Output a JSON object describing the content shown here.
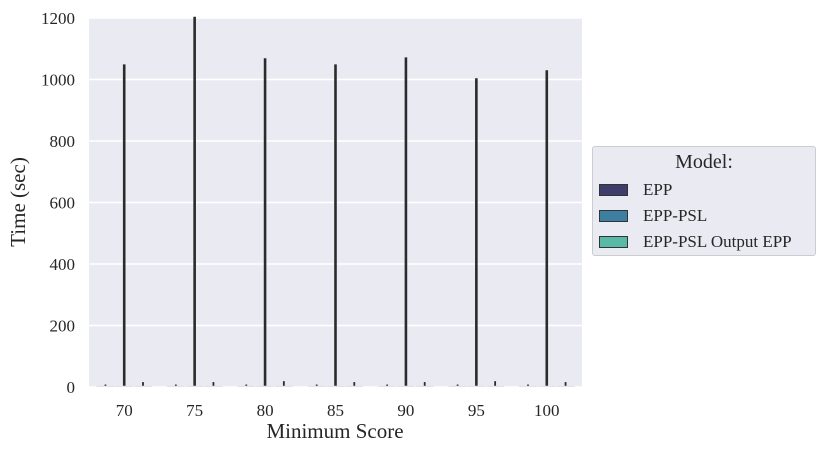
{
  "chart_data": {
    "type": "bar",
    "xlabel": "Minimum Score",
    "ylabel": "Time (sec)",
    "ylim": [
      0,
      1200
    ],
    "yticks": [
      0,
      200,
      400,
      600,
      800,
      1000,
      1200
    ],
    "categories": [
      "70",
      "75",
      "80",
      "85",
      "90",
      "95",
      "100"
    ],
    "error_bars": true,
    "grid": true,
    "legend_title": "Model:",
    "legend_position": "outside-right",
    "series": [
      {
        "name": "EPP",
        "color": "#3f3d6b",
        "values": [
          4,
          4,
          4,
          4,
          4,
          4,
          4
        ],
        "err_low": [
          0,
          0,
          0,
          0,
          0,
          0,
          0
        ],
        "err_high": [
          4,
          4,
          4,
          4,
          4,
          4,
          4
        ]
      },
      {
        "name": "EPP-PSL",
        "color": "#3c7fa0",
        "values": [
          4,
          4,
          4,
          4,
          4,
          4,
          4
        ],
        "err_low": [
          0,
          0,
          0,
          0,
          0,
          0,
          0
        ],
        "err_high": [
          1045,
          1200,
          1065,
          1045,
          1068,
          1000,
          1026
        ]
      },
      {
        "name": "EPP-PSL Output EPP",
        "color": "#58b9a6",
        "values": [
          4,
          4,
          4,
          4,
          4,
          4,
          4
        ],
        "err_low": [
          0,
          0,
          0,
          0,
          0,
          0,
          0
        ],
        "err_high": [
          12,
          12,
          15,
          12,
          12,
          15,
          12
        ]
      }
    ]
  }
}
